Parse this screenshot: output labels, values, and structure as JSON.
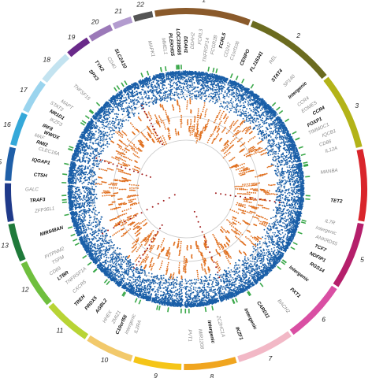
{
  "chart_data": {
    "type": "scatter",
    "title": "",
    "layout": "circular-manhattan",
    "chromosomes": [
      {
        "name": "1",
        "color": "#8a5a2b"
      },
      {
        "name": "2",
        "color": "#6b6b1f"
      },
      {
        "name": "3",
        "color": "#b3b318"
      },
      {
        "name": "4",
        "color": "#d9252b"
      },
      {
        "name": "5",
        "color": "#b51f6b"
      },
      {
        "name": "6",
        "color": "#d94fa3"
      },
      {
        "name": "7",
        "color": "#f2b8c6"
      },
      {
        "name": "8",
        "color": "#f0a51f"
      },
      {
        "name": "9",
        "color": "#f5c518"
      },
      {
        "name": "10",
        "color": "#f2c96b"
      },
      {
        "name": "11",
        "color": "#b8d435"
      },
      {
        "name": "12",
        "color": "#6fbf3e"
      },
      {
        "name": "13",
        "color": "#1f7a3a"
      },
      {
        "name": "14",
        "color": "#1f3a8a"
      },
      {
        "name": "15",
        "color": "#1f5fa8"
      },
      {
        "name": "16",
        "color": "#35a8d9"
      },
      {
        "name": "17",
        "color": "#9ad4ee"
      },
      {
        "name": "18",
        "color": "#c3e3f0"
      },
      {
        "name": "19",
        "color": "#6a2a8a"
      },
      {
        "name": "20",
        "color": "#9b79b8"
      },
      {
        "name": "21",
        "color": "#b39ccf"
      },
      {
        "name": "22",
        "color": "#555555"
      }
    ],
    "series_colors": {
      "main": "#1a5fa8",
      "secondary": "#e07020",
      "top": "#a01a1a",
      "marker": "#3aa84a",
      "rings": "#c8c8c8"
    },
    "grid": true,
    "legend": "none",
    "gene_labels": [
      {
        "text": "MMEL1",
        "chr": "1",
        "style": "grey"
      },
      {
        "text": "PLEKHG5",
        "chr": "1",
        "style": "bold"
      },
      {
        "text": "LOC339505",
        "chr": "1",
        "style": "bold"
      },
      {
        "text": "DDAH1",
        "chr": "1",
        "style": "bold"
      },
      {
        "text": "DDAH2",
        "chr": "1",
        "style": "grey"
      },
      {
        "text": "FCRL3",
        "chr": "1",
        "style": "grey"
      },
      {
        "text": "TNFRSF14",
        "chr": "1",
        "style": "grey"
      },
      {
        "text": "FCGR2B",
        "chr": "1",
        "style": "grey"
      },
      {
        "text": "FCRL5",
        "chr": "1",
        "style": "bold"
      },
      {
        "text": "CD247",
        "chr": "1",
        "style": "grey"
      },
      {
        "text": "C1orf106",
        "chr": "1",
        "style": "grey"
      },
      {
        "text": "CENPO",
        "chr": "2",
        "style": "bold"
      },
      {
        "text": "FLJ16341",
        "chr": "2",
        "style": "bold"
      },
      {
        "text": "REL",
        "chr": "2",
        "style": "grey"
      },
      {
        "text": "STAT4",
        "chr": "2",
        "style": "bold"
      },
      {
        "text": "SP140",
        "chr": "2",
        "style": "grey"
      },
      {
        "text": "Intergenic",
        "chr": "2",
        "style": "bold"
      },
      {
        "text": "CCR4",
        "chr": "3",
        "style": "grey"
      },
      {
        "text": "EOMES",
        "chr": "3",
        "style": "grey"
      },
      {
        "text": "CCR4",
        "chr": "3",
        "style": "bold"
      },
      {
        "text": "FOXP1",
        "chr": "3",
        "style": "bold"
      },
      {
        "text": "TIMMDC1",
        "chr": "3",
        "style": "grey"
      },
      {
        "text": "IQCB1",
        "chr": "3",
        "style": "grey"
      },
      {
        "text": "CD86",
        "chr": "3",
        "style": "grey"
      },
      {
        "text": "IL12A",
        "chr": "3",
        "style": "grey"
      },
      {
        "text": "MANBA",
        "chr": "4",
        "style": "grey"
      },
      {
        "text": "TET2",
        "chr": "4",
        "style": "bold"
      },
      {
        "text": "IL7R",
        "chr": "5",
        "style": "grey"
      },
      {
        "text": "Intergenic",
        "chr": "5",
        "style": "grey"
      },
      {
        "text": "ANKRD55",
        "chr": "5",
        "style": "grey"
      },
      {
        "text": "TCF7",
        "chr": "5",
        "style": "bold"
      },
      {
        "text": "NDFIP1",
        "chr": "5",
        "style": "bold"
      },
      {
        "text": "RGS14",
        "chr": "5",
        "style": "bold"
      },
      {
        "text": "Intergenic",
        "chr": "6",
        "style": "bold"
      },
      {
        "text": "PXT1",
        "chr": "6",
        "style": "bold"
      },
      {
        "text": "BACH2",
        "chr": "6",
        "style": "grey"
      },
      {
        "text": "CARD11",
        "chr": "7",
        "style": "bold"
      },
      {
        "text": "Intergenic",
        "chr": "7",
        "style": "bold"
      },
      {
        "text": "IKZF1",
        "chr": "7",
        "style": "bold"
      },
      {
        "text": "ZC2HC1A",
        "chr": "8",
        "style": "grey"
      },
      {
        "text": "Intergenic",
        "chr": "8",
        "style": "bold"
      },
      {
        "text": "MIR1208",
        "chr": "8",
        "style": "grey"
      },
      {
        "text": "PVT1",
        "chr": "8",
        "style": "grey"
      },
      {
        "text": "IL2RA",
        "chr": "10",
        "style": "grey"
      },
      {
        "text": "Intergenic",
        "chr": "10",
        "style": "grey"
      },
      {
        "text": "C10orf55",
        "chr": "10",
        "style": "bold"
      },
      {
        "text": "ZMIZ1",
        "chr": "10",
        "style": "grey"
      },
      {
        "text": "HHEX",
        "chr": "10",
        "style": "grey"
      },
      {
        "text": "AGBL2",
        "chr": "11",
        "style": "bold"
      },
      {
        "text": "PRDX5",
        "chr": "11",
        "style": "bold"
      },
      {
        "text": "TREH",
        "chr": "11",
        "style": "bold"
      },
      {
        "text": "CXCR5",
        "chr": "11",
        "style": "grey"
      },
      {
        "text": "TNFRSF1A",
        "chr": "12",
        "style": "grey"
      },
      {
        "text": "LTBR",
        "chr": "12",
        "style": "bold"
      },
      {
        "text": "CD69",
        "chr": "12",
        "style": "grey"
      },
      {
        "text": "TSFM",
        "chr": "12",
        "style": "grey"
      },
      {
        "text": "PITPNM2",
        "chr": "12",
        "style": "grey"
      },
      {
        "text": "MIR548AN",
        "chr": "13",
        "style": "bold"
      },
      {
        "text": "ZFP36L1",
        "chr": "14",
        "style": "grey"
      },
      {
        "text": "TRAF3",
        "chr": "14",
        "style": "bold"
      },
      {
        "text": "GALC",
        "chr": "14",
        "style": "grey"
      },
      {
        "text": "CTSH",
        "chr": "15",
        "style": "bold"
      },
      {
        "text": "IQGAP1",
        "chr": "15",
        "style": "bold"
      },
      {
        "text": "CLEC16A",
        "chr": "16",
        "style": "grey"
      },
      {
        "text": "RMI2",
        "chr": "16",
        "style": "bold"
      },
      {
        "text": "MAF",
        "chr": "16",
        "style": "grey"
      },
      {
        "text": "WWOX",
        "chr": "16",
        "style": "bold"
      },
      {
        "text": "IRF8",
        "chr": "16",
        "style": "bold"
      },
      {
        "text": "IKZF3",
        "chr": "17",
        "style": "grey"
      },
      {
        "text": "NR1D1",
        "chr": "17",
        "style": "bold"
      },
      {
        "text": "STAT3",
        "chr": "17",
        "style": "grey"
      },
      {
        "text": "MAPT",
        "chr": "17",
        "style": "grey"
      },
      {
        "text": "TNFSF15",
        "chr": "18",
        "style": "grey"
      },
      {
        "text": "SPX3",
        "chr": "19",
        "style": "bold"
      },
      {
        "text": "CD40",
        "chr": "20",
        "style": "grey"
      },
      {
        "text": "TYK2",
        "chr": "19",
        "style": "bold"
      },
      {
        "text": "SLC2A10",
        "chr": "20",
        "style": "bold"
      },
      {
        "text": "MAPK1",
        "chr": "22",
        "style": "grey"
      }
    ]
  }
}
